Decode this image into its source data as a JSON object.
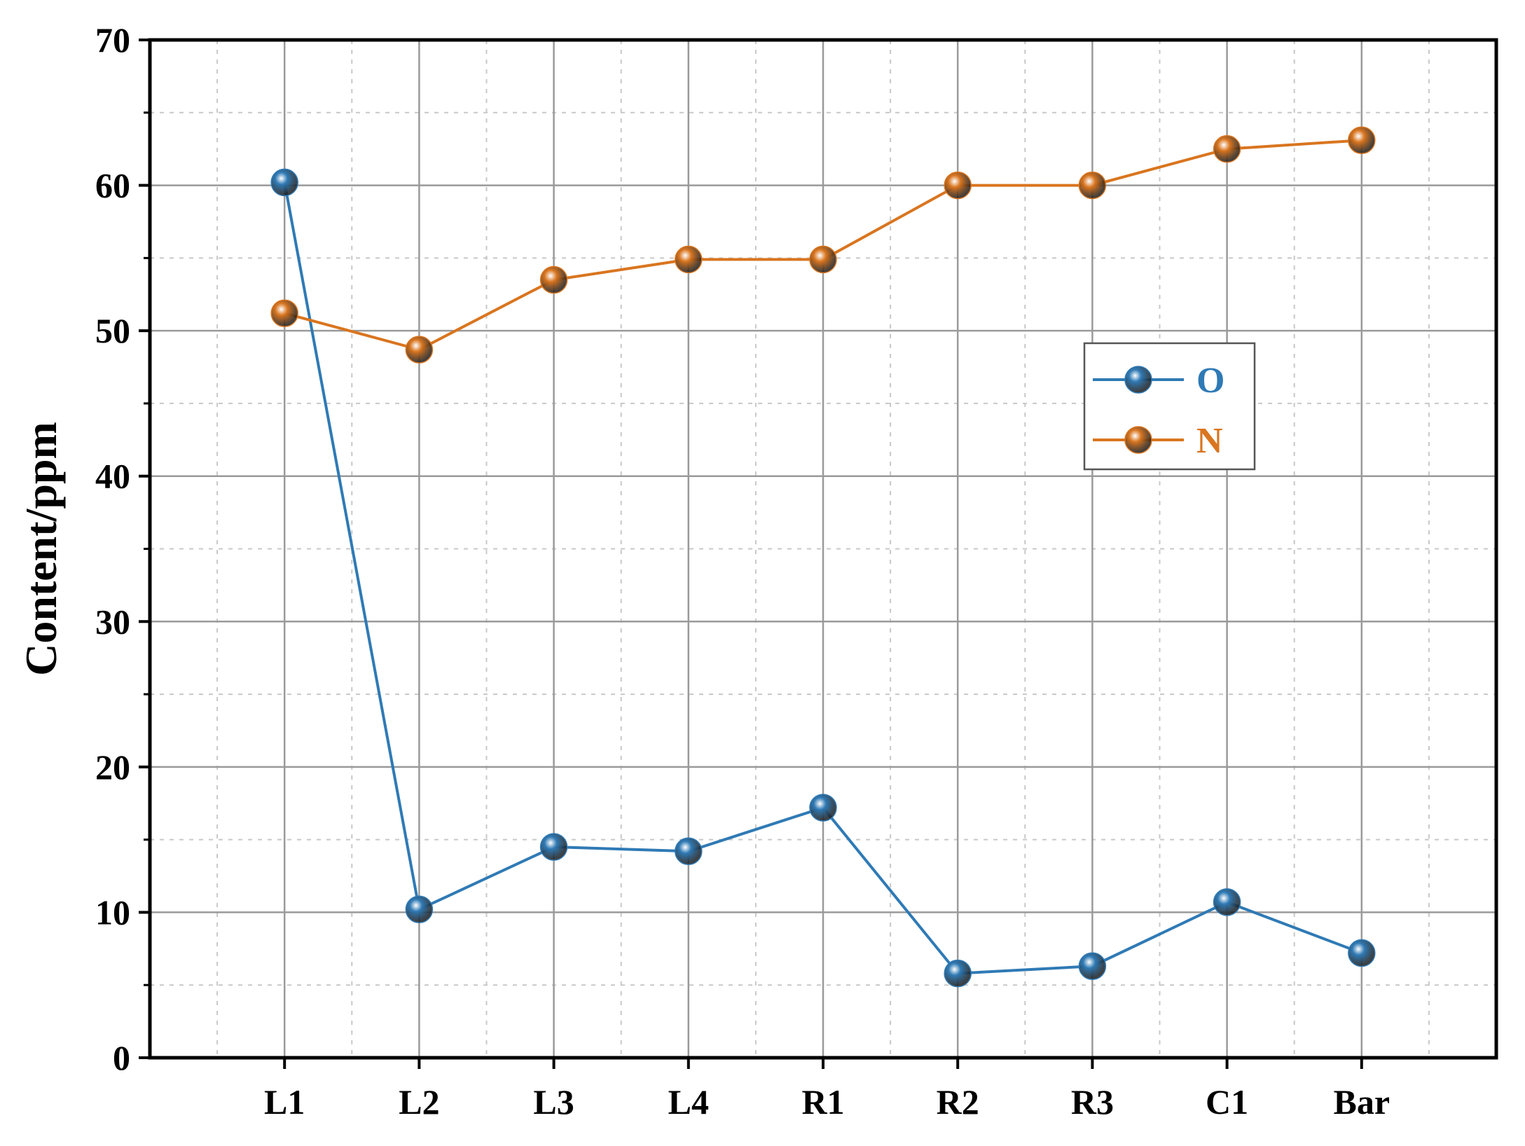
{
  "chart_data": {
    "type": "line",
    "categories": [
      "L1",
      "L2",
      "L3",
      "L4",
      "R1",
      "R2",
      "R3",
      "C1",
      "Bar"
    ],
    "series": [
      {
        "name": "O",
        "color": "#2f7ab5",
        "values": [
          60.2,
          10.2,
          14.5,
          14.2,
          17.2,
          5.8,
          6.3,
          10.7,
          7.2
        ]
      },
      {
        "name": "N",
        "color": "#d9751f",
        "values": [
          51.2,
          48.7,
          53.5,
          54.9,
          54.9,
          60.0,
          60.0,
          62.5,
          63.1
        ]
      }
    ],
    "xlabel": "",
    "ylabel": "Content/ppm",
    "ylim": [
      0,
      70
    ],
    "yticks": [
      "0",
      "10",
      "20",
      "30",
      "40",
      "50",
      "60",
      "70"
    ],
    "grid": true,
    "legend": "upper-right-center"
  }
}
